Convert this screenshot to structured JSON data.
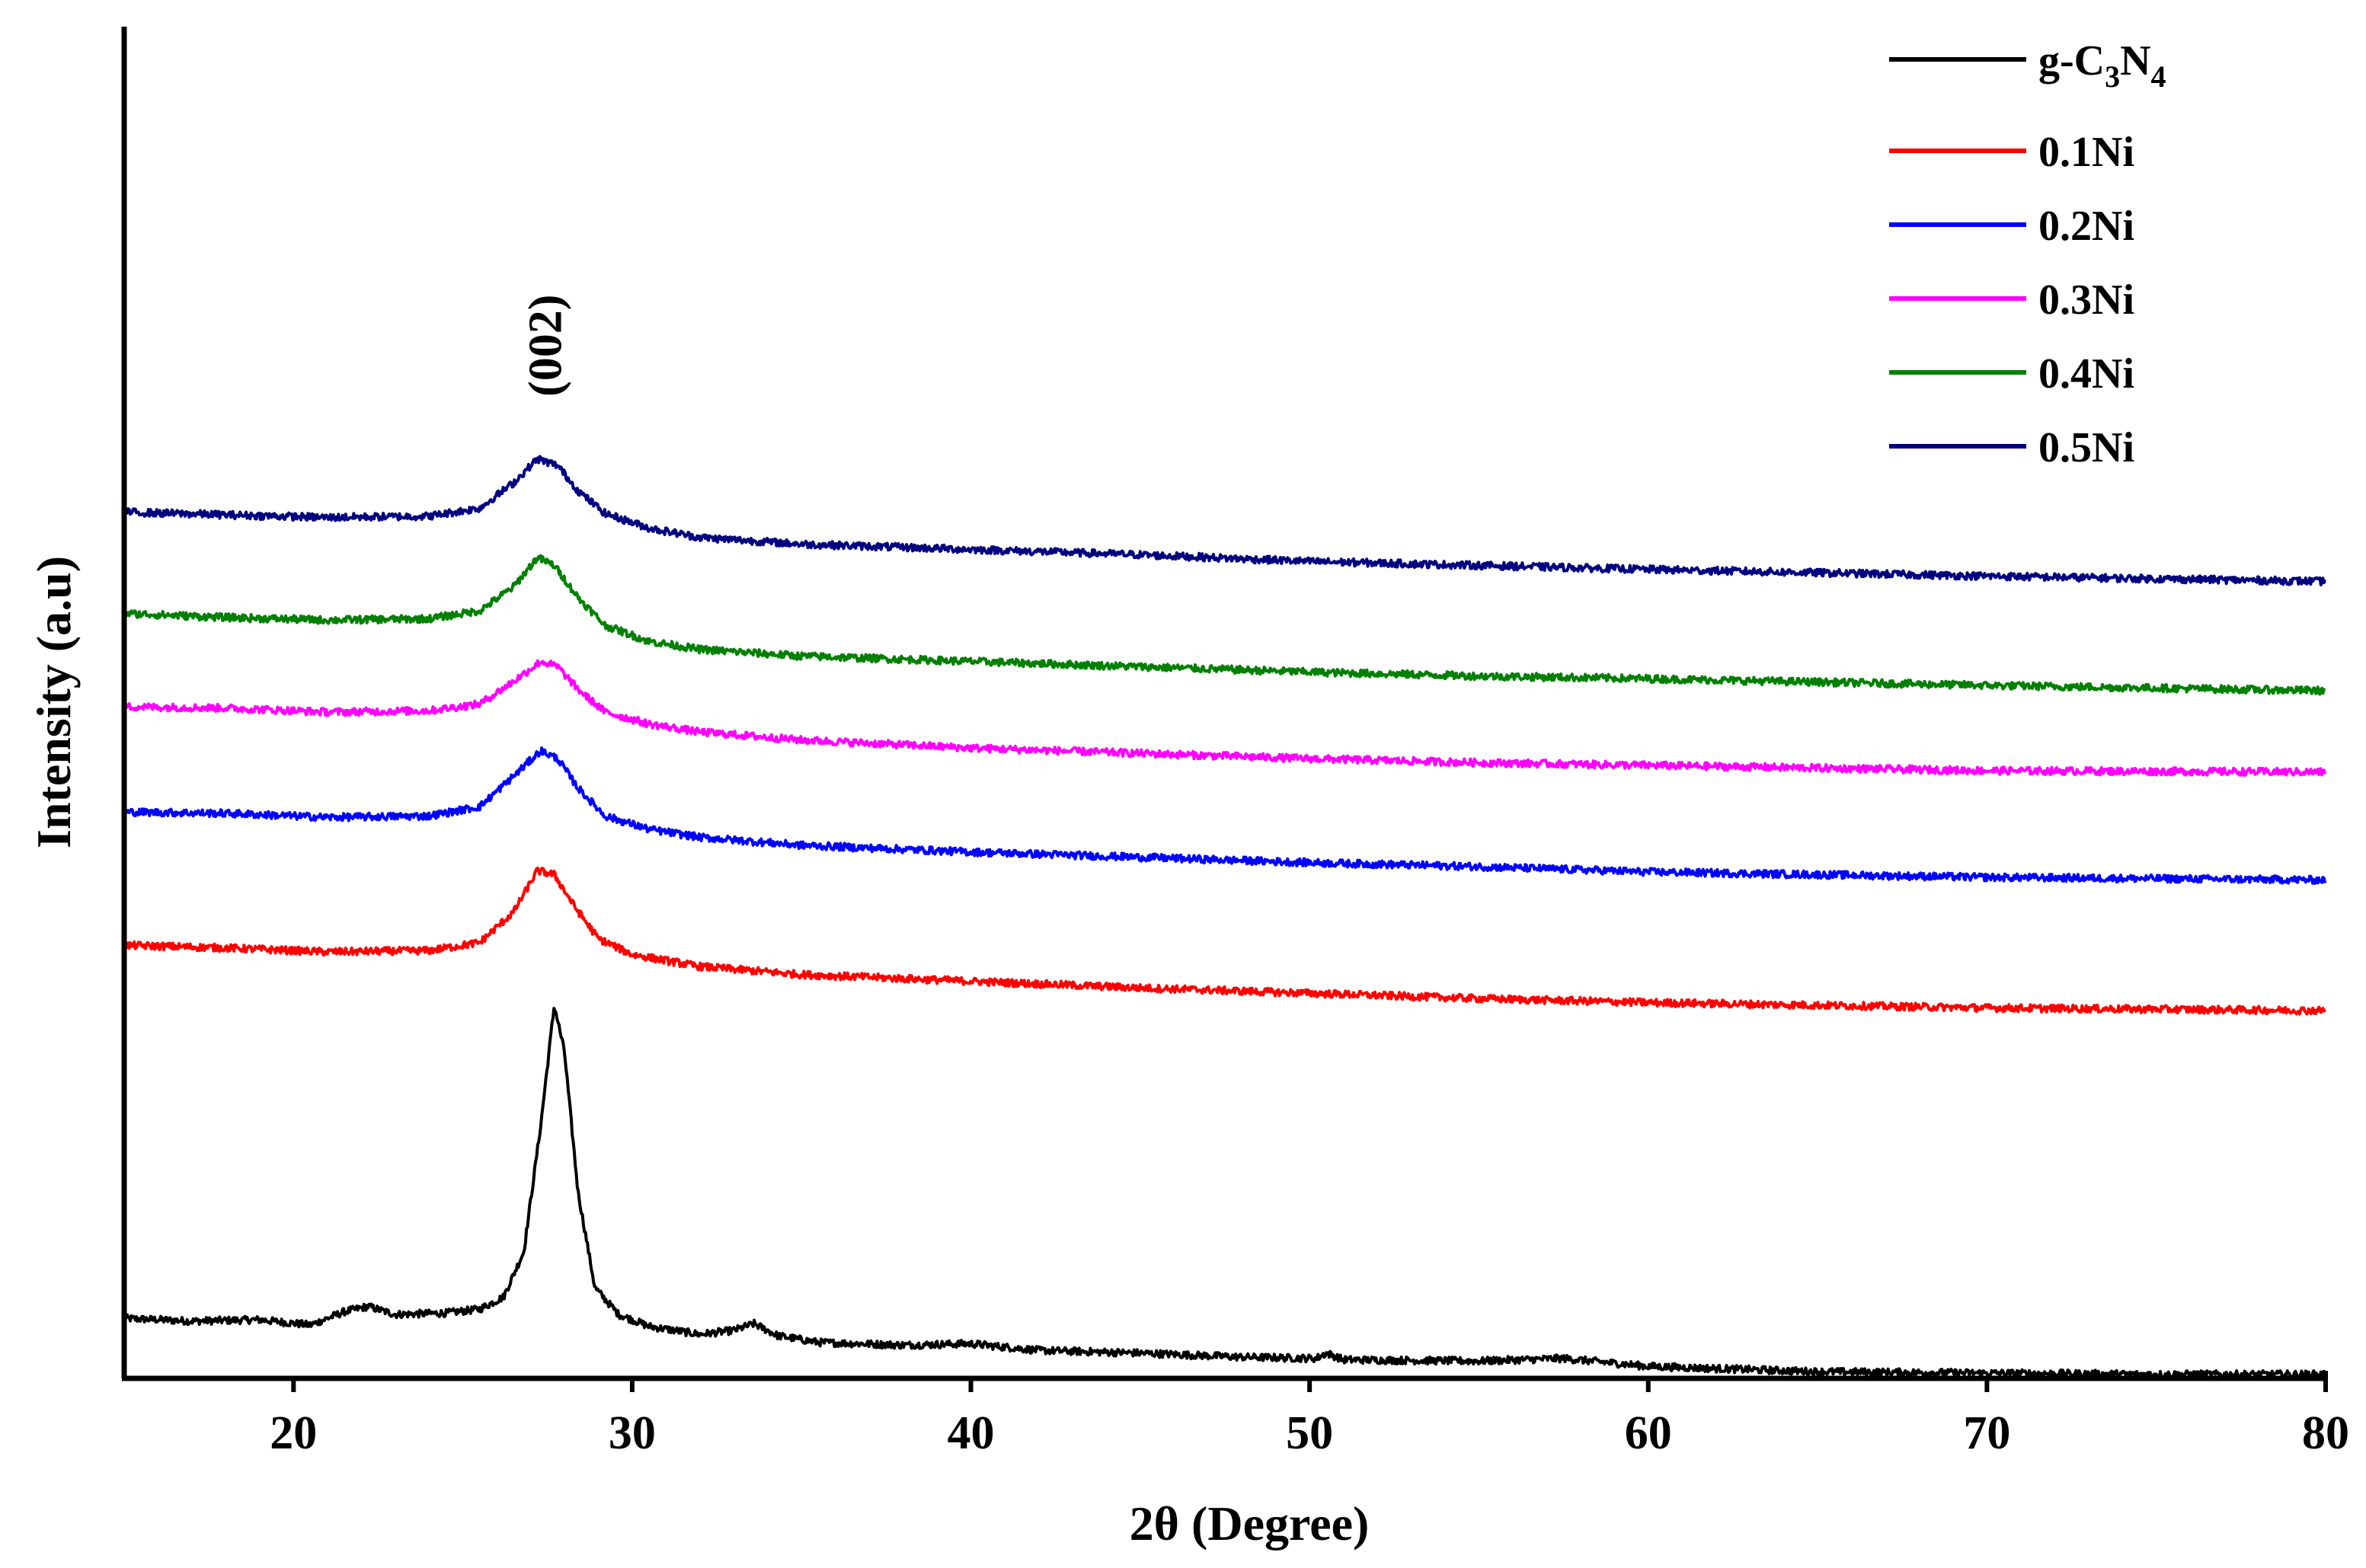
{
  "chart_data": {
    "type": "line",
    "title": "",
    "xlabel": "2θ (Degree)",
    "ylabel": "Intensity (a.u)",
    "xlim": [
      15,
      80
    ],
    "ylim": [
      0,
      100
    ],
    "xticks": [
      20,
      30,
      40,
      50,
      60,
      70,
      80
    ],
    "yticks_shown": false,
    "grid": false,
    "legend_position": "top-right",
    "annotations": [
      {
        "text": "(002)",
        "x": 27.4,
        "y": 69.5,
        "rotation": -90
      }
    ],
    "series": [
      {
        "name": "g-C3N4",
        "label_parts": {
          "g": "g-C",
          "sub1": "3",
          "mid": "N",
          "sub2": "4"
        },
        "color": "#000000",
        "points": [
          [
            15,
            4.5
          ],
          [
            17,
            4.3
          ],
          [
            19,
            4.4
          ],
          [
            20.5,
            4.0
          ],
          [
            21.5,
            5.0
          ],
          [
            22.2,
            5.4
          ],
          [
            23,
            4.8
          ],
          [
            24.5,
            4.9
          ],
          [
            25.5,
            5.2
          ],
          [
            26.2,
            6.1
          ],
          [
            26.8,
            9.5
          ],
          [
            27.3,
            19.0
          ],
          [
            27.7,
            28.0
          ],
          [
            28.0,
            24.5
          ],
          [
            28.4,
            14.0
          ],
          [
            28.9,
            6.8
          ],
          [
            29.6,
            4.8
          ],
          [
            30.5,
            3.9
          ],
          [
            32,
            3.3
          ],
          [
            33,
            3.6
          ],
          [
            33.6,
            4.1
          ],
          [
            34.3,
            3.2
          ],
          [
            35.5,
            2.7
          ],
          [
            38,
            2.5
          ],
          [
            40,
            2.6
          ],
          [
            42,
            2.1
          ],
          [
            45,
            1.9
          ],
          [
            48,
            1.6
          ],
          [
            50.2,
            1.5
          ],
          [
            50.5,
            1.9
          ],
          [
            51,
            1.4
          ],
          [
            55,
            1.3
          ],
          [
            57.5,
            1.5
          ],
          [
            60,
            0.9
          ],
          [
            65,
            0.5
          ],
          [
            70,
            0.4
          ],
          [
            75,
            0.3
          ],
          [
            80,
            0.3
          ]
        ]
      },
      {
        "name": "0.1Ni",
        "color": "#ff0000",
        "points": [
          [
            15,
            32.5
          ],
          [
            18,
            32.3
          ],
          [
            21,
            32.0
          ],
          [
            24,
            32.1
          ],
          [
            25.5,
            32.7
          ],
          [
            26.5,
            35.0
          ],
          [
            27.2,
            38.1
          ],
          [
            27.7,
            37.8
          ],
          [
            28.3,
            35.4
          ],
          [
            29,
            33.0
          ],
          [
            30,
            31.8
          ],
          [
            32,
            30.9
          ],
          [
            35,
            30.3
          ],
          [
            40,
            29.8
          ],
          [
            45,
            29.3
          ],
          [
            50,
            28.9
          ],
          [
            55,
            28.5
          ],
          [
            60,
            28.2
          ],
          [
            70,
            27.8
          ],
          [
            80,
            27.6
          ]
        ]
      },
      {
        "name": "0.2Ni",
        "color": "#0000ff",
        "points": [
          [
            15,
            42.5
          ],
          [
            18,
            42.4
          ],
          [
            21,
            42.1
          ],
          [
            24,
            42.2
          ],
          [
            25.5,
            42.9
          ],
          [
            26.5,
            45.2
          ],
          [
            27.3,
            47.1
          ],
          [
            27.8,
            46.5
          ],
          [
            28.4,
            44.3
          ],
          [
            29.2,
            42.2
          ],
          [
            30.5,
            41.2
          ],
          [
            32,
            40.6
          ],
          [
            35,
            40.0
          ],
          [
            40,
            39.5
          ],
          [
            45,
            39.1
          ],
          [
            50,
            38.7
          ],
          [
            55,
            38.4
          ],
          [
            60,
            38.0
          ],
          [
            70,
            37.6
          ],
          [
            80,
            37.4
          ]
        ]
      },
      {
        "name": "0.3Ni",
        "color": "#ff00ff",
        "points": [
          [
            15,
            50.4
          ],
          [
            18,
            50.3
          ],
          [
            21,
            50.0
          ],
          [
            24,
            50.1
          ],
          [
            25.5,
            50.6
          ],
          [
            26.5,
            52.3
          ],
          [
            27.3,
            53.8
          ],
          [
            27.8,
            53.4
          ],
          [
            28.4,
            51.7
          ],
          [
            29.2,
            50.0
          ],
          [
            30.5,
            49.1
          ],
          [
            32,
            48.5
          ],
          [
            35,
            47.9
          ],
          [
            40,
            47.3
          ],
          [
            45,
            46.9
          ],
          [
            50,
            46.5
          ],
          [
            55,
            46.2
          ],
          [
            60,
            46.0
          ],
          [
            70,
            45.6
          ],
          [
            80,
            45.5
          ]
        ]
      },
      {
        "name": "0.4Ni",
        "color": "#008000",
        "points": [
          [
            15,
            57.4
          ],
          [
            18,
            57.1
          ],
          [
            21,
            56.9
          ],
          [
            24,
            57.0
          ],
          [
            25.5,
            57.6
          ],
          [
            26.5,
            59.4
          ],
          [
            27.2,
            61.6
          ],
          [
            27.7,
            61.0
          ],
          [
            28.4,
            58.6
          ],
          [
            29.2,
            56.5
          ],
          [
            30.5,
            55.3
          ],
          [
            32,
            54.7
          ],
          [
            35,
            54.2
          ],
          [
            40,
            53.8
          ],
          [
            45,
            53.4
          ],
          [
            50,
            53.0
          ],
          [
            55,
            52.7
          ],
          [
            60,
            52.5
          ],
          [
            70,
            52.0
          ],
          [
            80,
            51.6
          ]
        ]
      },
      {
        "name": "0.5Ni",
        "color": "#000080",
        "points": [
          [
            15,
            65.0
          ],
          [
            18,
            64.8
          ],
          [
            21,
            64.6
          ],
          [
            24,
            64.7
          ],
          [
            25.5,
            65.3
          ],
          [
            26.5,
            67.2
          ],
          [
            27.2,
            69.0
          ],
          [
            27.8,
            68.5
          ],
          [
            28.4,
            66.6
          ],
          [
            29.2,
            64.9
          ],
          [
            30.5,
            63.8
          ],
          [
            32,
            63.1
          ],
          [
            35,
            62.6
          ],
          [
            40,
            62.2
          ],
          [
            45,
            61.8
          ],
          [
            50,
            61.3
          ],
          [
            55,
            61.0
          ],
          [
            60,
            60.7
          ],
          [
            70,
            60.2
          ],
          [
            80,
            59.8
          ]
        ]
      }
    ]
  }
}
